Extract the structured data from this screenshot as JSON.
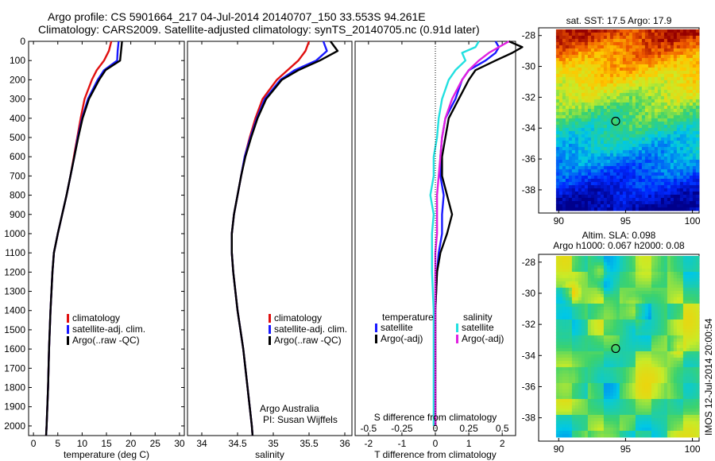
{
  "header": {
    "line1": "Argo profile: CS 5901664_217 04-Jul-2014 20140707_150 33.553S 94.261E",
    "line2": "Climatology: CARS2009. Satellite-adjusted climatology: synTS_20140705.nc (0.91d later)"
  },
  "footer": {
    "institution": "Argo Australia",
    "pi": "PI: Susan Wijffels",
    "stamp": "IMOS 12-Jul-2014 20:00:54"
  },
  "colors": {
    "climatology": "#e01010",
    "satellite": "#1a1aff",
    "argo": "#000000",
    "sal_satellite": "#22e0e0",
    "sal_argo": "#e020e0"
  },
  "chart_data": [
    {
      "type": "line",
      "name": "temperature-profile",
      "xlabel": "temperature (deg C)",
      "ylabel": "",
      "xlim": [
        -1,
        31
      ],
      "ylim": [
        2050,
        0
      ],
      "xticks": [
        0,
        5,
        10,
        15,
        20,
        25,
        30
      ],
      "yticks": [
        0,
        100,
        200,
        300,
        400,
        500,
        600,
        700,
        800,
        900,
        1000,
        1100,
        1200,
        1300,
        1400,
        1500,
        1600,
        1700,
        1800,
        1900,
        2000
      ],
      "legend": [
        "climatology",
        "satellite-adj. clim.",
        "Argo(..raw -QC)"
      ],
      "legend_position": "lower-center",
      "series": [
        {
          "name": "climatology",
          "depth": [
            0,
            50,
            100,
            150,
            200,
            300,
            400,
            500,
            600,
            700,
            800,
            900,
            1000,
            1100,
            1200,
            1400,
            1600,
            1800,
            2000,
            2050
          ],
          "values": [
            16.0,
            15.5,
            14.5,
            13.0,
            12.0,
            10.5,
            9.7,
            9.0,
            8.3,
            7.6,
            6.8,
            5.9,
            5.0,
            4.2,
            3.9,
            3.5,
            3.2,
            3.0,
            2.7,
            2.6
          ]
        },
        {
          "name": "satellite-adj. clim.",
          "depth": [
            0,
            50,
            100,
            150,
            200,
            300,
            400,
            500,
            600,
            700,
            800,
            900,
            1000,
            1100,
            1200,
            1400,
            1600,
            1800,
            2000,
            2050
          ],
          "values": [
            17.5,
            17.3,
            17.2,
            14.5,
            13.2,
            11.2,
            10.0,
            9.1,
            8.4,
            7.6,
            6.8,
            5.9,
            5.0,
            4.2,
            3.9,
            3.5,
            3.2,
            3.0,
            2.7,
            2.6
          ]
        },
        {
          "name": "Argo(..raw -QC)",
          "depth": [
            0,
            50,
            100,
            150,
            200,
            300,
            400,
            500,
            600,
            700,
            800,
            900,
            1000,
            1100,
            1200,
            1400,
            1600,
            1800,
            2000,
            2050
          ],
          "values": [
            18.2,
            18.0,
            17.8,
            14.8,
            13.5,
            11.4,
            10.1,
            9.2,
            8.4,
            7.6,
            6.8,
            5.9,
            5.0,
            4.2,
            3.9,
            3.5,
            3.2,
            3.0,
            2.7,
            2.6
          ]
        }
      ]
    },
    {
      "type": "line",
      "name": "salinity-profile",
      "xlabel": "salinity",
      "xlim": [
        33.8,
        36.1
      ],
      "ylim": [
        2050,
        0
      ],
      "xticks": [
        34,
        34.5,
        35,
        35.5,
        36
      ],
      "legend": [
        "climatology",
        "satellite-adj. clim.",
        "Argo(..raw -QC)"
      ],
      "legend_position": "lower-right",
      "series": [
        {
          "name": "climatology",
          "depth": [
            0,
            50,
            100,
            150,
            200,
            300,
            400,
            500,
            600,
            700,
            800,
            900,
            1000,
            1100,
            1200,
            1400,
            1600,
            1800,
            2000,
            2050
          ],
          "values": [
            35.5,
            35.45,
            35.35,
            35.2,
            35.05,
            34.85,
            34.75,
            34.67,
            34.6,
            34.55,
            34.5,
            34.45,
            34.42,
            34.42,
            34.44,
            34.5,
            34.58,
            34.64,
            34.7,
            34.71
          ]
        },
        {
          "name": "satellite-adj. clim.",
          "depth": [
            0,
            50,
            100,
            150,
            200,
            300,
            400,
            500,
            600,
            700,
            800,
            900,
            1000,
            1100,
            1200,
            1400,
            1600,
            1800,
            2000,
            2050
          ],
          "values": [
            35.7,
            35.75,
            35.6,
            35.3,
            35.1,
            34.88,
            34.77,
            34.68,
            34.6,
            34.55,
            34.5,
            34.45,
            34.42,
            34.42,
            34.44,
            34.5,
            34.58,
            34.64,
            34.7,
            34.71
          ]
        },
        {
          "name": "Argo(..raw -QC)",
          "depth": [
            0,
            50,
            100,
            150,
            200,
            300,
            400,
            500,
            600,
            700,
            800,
            900,
            1000,
            1100,
            1200,
            1400,
            1600,
            1800,
            2000,
            2050
          ],
          "values": [
            35.8,
            35.9,
            35.65,
            35.35,
            35.12,
            34.9,
            34.78,
            34.69,
            34.61,
            34.55,
            34.5,
            34.45,
            34.42,
            34.42,
            34.44,
            34.5,
            34.58,
            34.64,
            34.7,
            34.71
          ]
        }
      ]
    },
    {
      "type": "line",
      "name": "difference-profile",
      "xlabel": "T difference from climatology",
      "xlabel_top": "S difference from climatology",
      "xlim": [
        -2.4,
        2.4
      ],
      "ylim": [
        2050,
        0
      ],
      "xticks": [
        -2,
        -1,
        0,
        1,
        2
      ],
      "sticks_label": [
        "-0.5",
        "-0.25",
        "0",
        "0.25",
        "0.5"
      ],
      "sticks_value": [
        -2,
        -1,
        0,
        1,
        2
      ],
      "legend": {
        "temperature": [
          "satellite",
          "Argo(-adj)"
        ],
        "salinity": [
          "satellite",
          "Argo(-adj)"
        ]
      },
      "legend_position": "lower-center",
      "series": [
        {
          "name": "temperature satellite",
          "depth": [
            0,
            30,
            60,
            100,
            150,
            200,
            300,
            400,
            500,
            600,
            700,
            800,
            900,
            1000,
            1100,
            1200,
            1400,
            1600,
            1800,
            2000
          ],
          "values": [
            1.8,
            1.9,
            1.8,
            1.5,
            1.0,
            0.8,
            0.6,
            0.3,
            0.2,
            0.15,
            0.15,
            0.25,
            0.2,
            0.2,
            0.1,
            0.05,
            0.0,
            0.0,
            0.0,
            0.0
          ]
        },
        {
          "name": "temperature Argo(-adj)",
          "depth": [
            0,
            30,
            60,
            100,
            150,
            200,
            300,
            400,
            500,
            600,
            700,
            800,
            900,
            1000,
            1100,
            1200,
            1400,
            1600,
            1800,
            2000
          ],
          "values": [
            2.2,
            2.6,
            2.3,
            1.8,
            1.2,
            1.0,
            0.7,
            0.4,
            0.3,
            0.2,
            0.2,
            0.35,
            0.5,
            0.35,
            0.15,
            0.05,
            0.0,
            0.0,
            0.0,
            0.0
          ]
        },
        {
          "name": "salinity satellite",
          "depth": [
            0,
            30,
            60,
            100,
            150,
            200,
            300,
            400,
            500,
            600,
            700,
            800,
            900,
            1000,
            1100,
            1200,
            1400,
            1600,
            1800,
            2000
          ],
          "values": [
            1.3,
            1.2,
            0.8,
            0.9,
            0.6,
            0.4,
            0.2,
            0.1,
            0.05,
            -0.05,
            -0.05,
            -0.15,
            -0.05,
            -0.1,
            -0.1,
            -0.1,
            -0.05,
            -0.05,
            -0.05,
            -0.05
          ]
        },
        {
          "name": "salinity Argo(-adj)",
          "depth": [
            0,
            30,
            60,
            100,
            150,
            200,
            300,
            400,
            500,
            600,
            700,
            800,
            900,
            1000,
            1100,
            1200,
            1400,
            1600,
            1800,
            2000
          ],
          "values": [
            2.2,
            1.9,
            1.6,
            1.3,
            1.0,
            0.8,
            0.5,
            0.3,
            0.2,
            0.15,
            0.1,
            0.05,
            0.05,
            0.05,
            0.0,
            0.0,
            0.0,
            0.0,
            0.0,
            0.0
          ]
        }
      ]
    },
    {
      "type": "heatmap",
      "name": "sst-map",
      "title": "sat. SST: 17.5  Argo: 17.9",
      "xlim": [
        88.5,
        100.5
      ],
      "ylim": [
        -39.5,
        -27.5
      ],
      "xticks": [
        90,
        95,
        100
      ],
      "yticks": [
        -28,
        -30,
        -32,
        -34,
        -36,
        -38
      ],
      "extent_x": [
        89.8,
        100.3
      ],
      "extent_y": [
        -39.2,
        -27.6
      ],
      "marker": {
        "x": 94.26,
        "y": -33.55
      }
    },
    {
      "type": "heatmap",
      "name": "sla-map",
      "title_line1": "Altim. SLA: 0.098",
      "title_line2": "Argo h1000: 0.067 h2000: 0.08",
      "xlim": [
        88.5,
        100.5
      ],
      "ylim": [
        -39.5,
        -27.5
      ],
      "xticks": [
        90,
        95,
        100
      ],
      "yticks": [
        -28,
        -30,
        -32,
        -34,
        -36,
        -38
      ],
      "extent_x": [
        89.8,
        100.3
      ],
      "extent_y": [
        -39.2,
        -27.6
      ],
      "marker": {
        "x": 94.26,
        "y": -33.55
      }
    }
  ]
}
